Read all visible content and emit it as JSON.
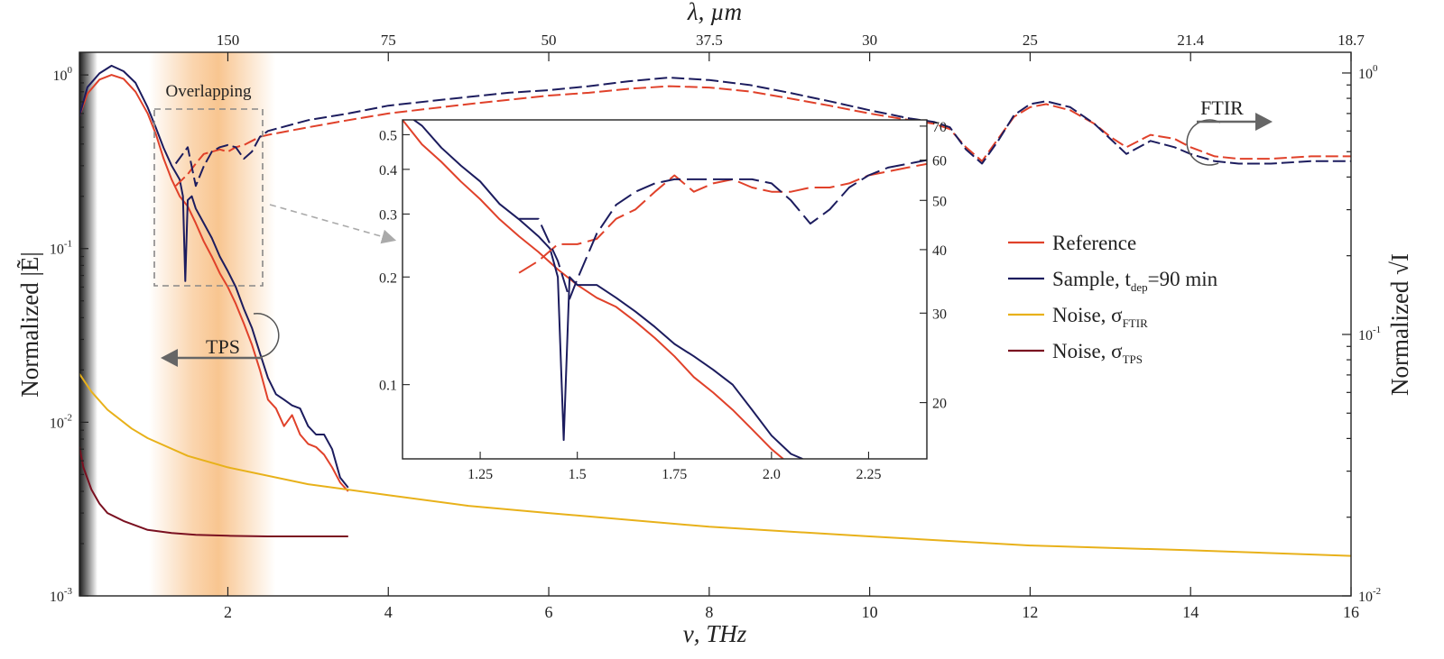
{
  "chart_data": {
    "type": "line",
    "x_axis": {
      "label": "ν, THz",
      "range": [
        0.15,
        16
      ],
      "ticks": [
        2,
        4,
        6,
        8,
        10,
        12,
        14,
        16
      ]
    },
    "top_axis": {
      "label": "λ, µm",
      "ticks": [
        {
          "nu": 2,
          "label": "150"
        },
        {
          "nu": 4,
          "label": "75"
        },
        {
          "nu": 6,
          "label": "50"
        },
        {
          "nu": 8,
          "label": "37.5"
        },
        {
          "nu": 10,
          "label": "30"
        },
        {
          "nu": 12,
          "label": "25"
        },
        {
          "nu": 14,
          "label": "21.4"
        },
        {
          "nu": 16,
          "label": "18.7"
        }
      ]
    },
    "y_left": {
      "label": "Normalized |Ẽ|",
      "scale": "log",
      "range": [
        0.001,
        1.35
      ],
      "ticks": [
        {
          "v": 1,
          "mant": "10",
          "exp": "0"
        },
        {
          "v": 0.1,
          "mant": "10",
          "exp": "-1"
        },
        {
          "v": 0.01,
          "mant": "10",
          "exp": "-2"
        },
        {
          "v": 0.001,
          "mant": "10",
          "exp": "-3"
        }
      ]
    },
    "y_right": {
      "label": "Normalized √I",
      "scale": "log",
      "range": [
        0.01,
        1.2
      ],
      "ticks": [
        {
          "v": 1,
          "mant": "10",
          "exp": "0"
        },
        {
          "v": 0.1,
          "mant": "10",
          "exp": "-1"
        },
        {
          "v": 0.01,
          "mant": "10",
          "exp": "-2"
        }
      ]
    },
    "legend": {
      "position": "right",
      "entries": [
        {
          "name": "Reference",
          "color": "#e0412a"
        },
        {
          "name": "Sample, t",
          "sub": "dep",
          "suffix": "=90 min",
          "color": "#1c1c5e"
        },
        {
          "name": "Noise, σ",
          "sub": "FTIR",
          "suffix": "",
          "color": "#e8b11a"
        },
        {
          "name": "Noise, σ",
          "sub": "TPS",
          "suffix": "",
          "color": "#7a1020"
        }
      ]
    },
    "annotations": {
      "overlap": "Overlapping",
      "tps": "TPS",
      "ftir": "FTIR"
    },
    "colors": {
      "reference": "#e0412a",
      "sample": "#1c1c5e",
      "noise_ftir": "#e8b11a",
      "noise_tps": "#7a1020",
      "band": "#f6b26b"
    },
    "series": [
      {
        "name": "Reference",
        "style": "solid",
        "axis": "left",
        "x": [
          0.15,
          0.25,
          0.4,
          0.55,
          0.7,
          0.85,
          1.0,
          1.1,
          1.2,
          1.3,
          1.4,
          1.5,
          1.6,
          1.7,
          1.8,
          1.9,
          2.0,
          2.1,
          2.2,
          2.3,
          2.4,
          2.5,
          2.6,
          2.7,
          2.8,
          2.9,
          3.0,
          3.1,
          3.2,
          3.3,
          3.4,
          3.5
        ],
        "y": [
          0.58,
          0.78,
          0.94,
          1.0,
          0.95,
          0.8,
          0.6,
          0.46,
          0.33,
          0.25,
          0.2,
          0.175,
          0.14,
          0.11,
          0.09,
          0.072,
          0.06,
          0.048,
          0.037,
          0.028,
          0.02,
          0.0135,
          0.012,
          0.0095,
          0.011,
          0.0085,
          0.0075,
          0.0072,
          0.0065,
          0.0055,
          0.0045,
          0.004
        ]
      },
      {
        "name": "Sample, t_dep=90 min",
        "style": "solid",
        "axis": "left",
        "x": [
          0.15,
          0.25,
          0.4,
          0.55,
          0.7,
          0.85,
          1.0,
          1.1,
          1.2,
          1.3,
          1.4,
          1.44,
          1.47,
          1.5,
          1.55,
          1.6,
          1.7,
          1.8,
          1.9,
          2.0,
          2.1,
          2.2,
          2.3,
          2.4,
          2.5,
          2.6,
          2.7,
          2.8,
          2.9,
          3.0,
          3.1,
          3.2,
          3.3,
          3.4,
          3.5
        ],
        "y": [
          0.58,
          0.85,
          1.02,
          1.13,
          1.05,
          0.9,
          0.65,
          0.5,
          0.38,
          0.3,
          0.25,
          0.2,
          0.065,
          0.19,
          0.2,
          0.17,
          0.14,
          0.115,
          0.09,
          0.074,
          0.06,
          0.045,
          0.035,
          0.025,
          0.018,
          0.0145,
          0.0135,
          0.0125,
          0.012,
          0.0095,
          0.0085,
          0.0085,
          0.007,
          0.0048,
          0.0042
        ]
      },
      {
        "name": "Reference FTIR",
        "style": "dashed",
        "axis": "right",
        "x": [
          1.35,
          1.5,
          1.6,
          1.7,
          1.8,
          1.9,
          2.0,
          2.1,
          2.2,
          2.3,
          2.4,
          2.5,
          3.0,
          3.5,
          4.0,
          4.5,
          5.0,
          5.5,
          6.0,
          6.5,
          7.0,
          7.5,
          8.0,
          8.5,
          9.0,
          9.5,
          10.0,
          10.5,
          10.8,
          11.0,
          11.2,
          11.4,
          11.6,
          11.8,
          12.0,
          12.2,
          12.5,
          12.8,
          13.0,
          13.2,
          13.5,
          13.8,
          14.0,
          14.3,
          14.6,
          15.0,
          15.5,
          16.0
        ],
        "y": [
          0.37,
          0.41,
          0.45,
          0.49,
          0.5,
          0.51,
          0.5,
          0.52,
          0.53,
          0.55,
          0.57,
          0.58,
          0.62,
          0.66,
          0.7,
          0.73,
          0.76,
          0.79,
          0.82,
          0.84,
          0.87,
          0.89,
          0.88,
          0.85,
          0.8,
          0.75,
          0.7,
          0.66,
          0.64,
          0.61,
          0.52,
          0.46,
          0.56,
          0.68,
          0.74,
          0.76,
          0.72,
          0.64,
          0.57,
          0.52,
          0.58,
          0.56,
          0.52,
          0.48,
          0.47,
          0.47,
          0.48,
          0.48
        ]
      },
      {
        "name": "Sample FTIR",
        "style": "dashed",
        "axis": "right",
        "x": [
          1.35,
          1.5,
          1.6,
          1.7,
          1.8,
          1.9,
          2.0,
          2.1,
          2.2,
          2.3,
          2.4,
          2.5,
          3.0,
          3.5,
          4.0,
          4.5,
          5.0,
          5.5,
          6.0,
          6.5,
          7.0,
          7.5,
          8.0,
          8.5,
          9.0,
          9.5,
          10.0,
          10.5,
          10.8,
          11.0,
          11.2,
          11.4,
          11.6,
          11.8,
          12.0,
          12.2,
          12.5,
          12.8,
          13.0,
          13.2,
          13.5,
          13.8,
          14.0,
          14.3,
          14.6,
          15.0,
          15.5,
          16.0
        ],
        "y": [
          0.45,
          0.52,
          0.37,
          0.44,
          0.5,
          0.52,
          0.53,
          0.52,
          0.47,
          0.5,
          0.57,
          0.6,
          0.66,
          0.7,
          0.75,
          0.78,
          0.81,
          0.84,
          0.86,
          0.89,
          0.93,
          0.96,
          0.94,
          0.9,
          0.84,
          0.78,
          0.72,
          0.67,
          0.65,
          0.62,
          0.51,
          0.45,
          0.55,
          0.69,
          0.76,
          0.78,
          0.74,
          0.64,
          0.56,
          0.49,
          0.55,
          0.52,
          0.49,
          0.46,
          0.45,
          0.45,
          0.46,
          0.46
        ]
      },
      {
        "name": "Noise, σ_FTIR",
        "style": "solid",
        "axis": "left",
        "x": [
          0.15,
          0.3,
          0.5,
          0.8,
          1.0,
          1.5,
          2.0,
          3.0,
          4.0,
          5.0,
          6.0,
          8.0,
          10.0,
          12.0,
          14.0,
          16.0
        ],
        "y": [
          0.019,
          0.015,
          0.0118,
          0.0092,
          0.0081,
          0.0064,
          0.0055,
          0.0044,
          0.0038,
          0.0033,
          0.003,
          0.0025,
          0.0022,
          0.00195,
          0.00183,
          0.0017
        ]
      },
      {
        "name": "Noise, σ_TPS",
        "style": "solid",
        "axis": "left",
        "x": [
          0.15,
          0.2,
          0.3,
          0.4,
          0.5,
          0.7,
          1.0,
          1.3,
          1.6,
          2.0,
          2.5,
          3.0,
          3.5
        ],
        "y": [
          0.0072,
          0.0055,
          0.0041,
          0.0034,
          0.003,
          0.0027,
          0.0024,
          0.0023,
          0.00225,
          0.00222,
          0.0022,
          0.0022,
          0.0022
        ]
      }
    ],
    "inset": {
      "x_range": [
        1.05,
        2.4
      ],
      "x_ticks": [
        {
          "v": 1.25,
          "label": "1.25"
        },
        {
          "v": 1.5,
          "label": "1.5"
        },
        {
          "v": 1.75,
          "label": "1.75"
        },
        {
          "v": 2.0,
          "label": "2.0"
        },
        {
          "v": 2.25,
          "label": "2.25"
        }
      ],
      "y_left_range": [
        0.062,
        0.55
      ],
      "y_left_ticks": [
        {
          "v": 0.5,
          "label": "0.5"
        },
        {
          "v": 0.4,
          "label": "0.4"
        },
        {
          "v": 0.3,
          "label": "0.3"
        },
        {
          "v": 0.2,
          "label": "0.2"
        },
        {
          "v": 0.1,
          "label": "0.1"
        }
      ],
      "y_right_range": [
        15.5,
        72
      ],
      "y_right_ticks": [
        {
          "v": 70,
          "label": "70"
        },
        {
          "v": 60,
          "label": "60"
        },
        {
          "v": 50,
          "label": "50"
        },
        {
          "v": 40,
          "label": "40"
        },
        {
          "v": 30,
          "label": "30"
        },
        {
          "v": 20,
          "label": "20"
        }
      ],
      "series": [
        {
          "name": "Reference",
          "style": "solid",
          "axis": "left",
          "x": [
            1.05,
            1.1,
            1.15,
            1.2,
            1.25,
            1.3,
            1.35,
            1.4,
            1.45,
            1.5,
            1.55,
            1.6,
            1.65,
            1.7,
            1.75,
            1.8,
            1.85,
            1.9,
            1.95,
            2.0,
            2.03
          ],
          "y": [
            0.55,
            0.47,
            0.42,
            0.37,
            0.33,
            0.29,
            0.26,
            0.235,
            0.21,
            0.19,
            0.175,
            0.165,
            0.15,
            0.135,
            0.12,
            0.105,
            0.095,
            0.085,
            0.075,
            0.066,
            0.062
          ]
        },
        {
          "name": "Sample",
          "style": "solid",
          "axis": "left",
          "x": [
            1.05,
            1.1,
            1.15,
            1.2,
            1.25,
            1.3,
            1.35,
            1.4,
            1.43,
            1.45,
            1.465,
            1.48,
            1.5,
            1.55,
            1.6,
            1.65,
            1.7,
            1.75,
            1.8,
            1.85,
            1.9,
            1.95,
            2.0,
            2.05,
            2.08
          ],
          "y": [
            0.58,
            0.53,
            0.46,
            0.41,
            0.37,
            0.32,
            0.29,
            0.26,
            0.24,
            0.2,
            0.07,
            0.2,
            0.19,
            0.19,
            0.175,
            0.16,
            0.145,
            0.13,
            0.12,
            0.11,
            0.1,
            0.085,
            0.072,
            0.064,
            0.062
          ]
        },
        {
          "name": "Reference FTIR",
          "style": "dashed",
          "axis": "right",
          "x": [
            1.35,
            1.4,
            1.45,
            1.5,
            1.55,
            1.6,
            1.65,
            1.7,
            1.75,
            1.8,
            1.85,
            1.9,
            1.95,
            2.0,
            2.05,
            2.1,
            2.15,
            2.2,
            2.25,
            2.3,
            2.35,
            2.4
          ],
          "y": [
            36,
            38,
            41,
            41,
            42,
            46,
            48,
            52,
            56,
            52,
            54,
            55,
            53,
            52,
            52,
            53,
            53,
            54,
            56,
            57,
            58,
            59
          ]
        },
        {
          "name": "Sample FTIR",
          "style": "dashed",
          "axis": "right",
          "x": [
            1.35,
            1.4,
            1.45,
            1.48,
            1.5,
            1.55,
            1.6,
            1.65,
            1.7,
            1.75,
            1.8,
            1.85,
            1.9,
            1.95,
            2.0,
            2.05,
            2.1,
            2.15,
            2.2,
            2.25,
            2.3,
            2.35,
            2.4
          ],
          "y": [
            46,
            46,
            38,
            32,
            35,
            43,
            49,
            52,
            54,
            55,
            55,
            55,
            55,
            55,
            54,
            50,
            45,
            48,
            53,
            56,
            58,
            59,
            60
          ]
        }
      ]
    }
  }
}
